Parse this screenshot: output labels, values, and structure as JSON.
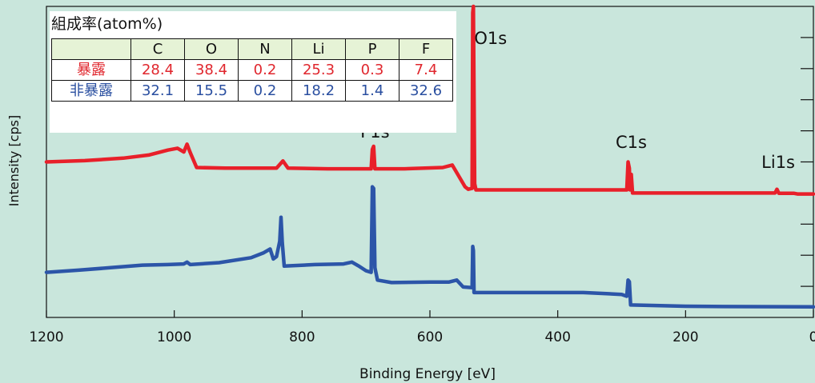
{
  "chart_data": {
    "type": "line",
    "xlabel": "Binding Energy [eV]",
    "ylabel": "Intensity [cps]",
    "xlim": [
      1200,
      0
    ],
    "x_reversed": true,
    "x_ticks": [
      1200,
      1000,
      800,
      600,
      400,
      200,
      0
    ],
    "y_ticks_count": 10,
    "y_ticks_labeled": false,
    "grid": false,
    "series": [
      {
        "name": "暴露",
        "color": "#e8202a",
        "points": [
          [
            1200,
            0.5
          ],
          [
            1140,
            0.504
          ],
          [
            1080,
            0.512
          ],
          [
            1040,
            0.522
          ],
          [
            1010,
            0.538
          ],
          [
            995,
            0.544
          ],
          [
            985,
            0.532
          ],
          [
            980,
            0.557
          ],
          [
            975,
            0.53
          ],
          [
            965,
            0.482
          ],
          [
            920,
            0.48
          ],
          [
            880,
            0.48
          ],
          [
            840,
            0.48
          ],
          [
            830,
            0.503
          ],
          [
            822,
            0.48
          ],
          [
            760,
            0.478
          ],
          [
            700,
            0.478
          ],
          [
            692,
            0.478
          ],
          [
            690,
            0.54
          ],
          [
            688,
            0.55
          ],
          [
            686,
            0.478
          ],
          [
            640,
            0.478
          ],
          [
            580,
            0.482
          ],
          [
            565,
            0.49
          ],
          [
            555,
            0.455
          ],
          [
            545,
            0.42
          ],
          [
            540,
            0.412
          ],
          [
            534,
            0.415
          ],
          [
            533,
            0.98
          ],
          [
            532,
            1.0
          ],
          [
            530,
            0.43
          ],
          [
            528,
            0.41
          ],
          [
            440,
            0.41
          ],
          [
            360,
            0.41
          ],
          [
            300,
            0.41
          ],
          [
            292,
            0.41
          ],
          [
            290,
            0.5
          ],
          [
            288,
            0.48
          ],
          [
            287,
            0.41
          ],
          [
            285,
            0.46
          ],
          [
            283,
            0.4
          ],
          [
            200,
            0.4
          ],
          [
            60,
            0.4
          ],
          [
            57,
            0.412
          ],
          [
            54,
            0.399
          ],
          [
            30,
            0.399
          ],
          [
            25,
            0.397
          ],
          [
            0,
            0.397
          ]
        ]
      },
      {
        "name": "非暴露",
        "color": "#2c55a8",
        "points": [
          [
            1200,
            0.145
          ],
          [
            1150,
            0.152
          ],
          [
            1100,
            0.16
          ],
          [
            1050,
            0.168
          ],
          [
            1010,
            0.17
          ],
          [
            985,
            0.172
          ],
          [
            980,
            0.178
          ],
          [
            975,
            0.17
          ],
          [
            930,
            0.176
          ],
          [
            880,
            0.192
          ],
          [
            860,
            0.208
          ],
          [
            850,
            0.22
          ],
          [
            845,
            0.188
          ],
          [
            840,
            0.196
          ],
          [
            835,
            0.245
          ],
          [
            833,
            0.322
          ],
          [
            831,
            0.24
          ],
          [
            828,
            0.165
          ],
          [
            780,
            0.17
          ],
          [
            735,
            0.172
          ],
          [
            722,
            0.178
          ],
          [
            712,
            0.166
          ],
          [
            700,
            0.15
          ],
          [
            692,
            0.145
          ],
          [
            690,
            0.42
          ],
          [
            688,
            0.415
          ],
          [
            686,
            0.16
          ],
          [
            682,
            0.12
          ],
          [
            660,
            0.112
          ],
          [
            600,
            0.114
          ],
          [
            570,
            0.114
          ],
          [
            558,
            0.12
          ],
          [
            548,
            0.098
          ],
          [
            534,
            0.096
          ],
          [
            533,
            0.228
          ],
          [
            532,
            0.215
          ],
          [
            531,
            0.08
          ],
          [
            440,
            0.08
          ],
          [
            360,
            0.08
          ],
          [
            300,
            0.074
          ],
          [
            292,
            0.068
          ],
          [
            290,
            0.12
          ],
          [
            288,
            0.115
          ],
          [
            286,
            0.04
          ],
          [
            200,
            0.036
          ],
          [
            140,
            0.035
          ],
          [
            0,
            0.034
          ]
        ]
      }
    ],
    "annotations": [
      {
        "text": "O1s",
        "x": 505
      },
      {
        "text": "F1s",
        "x": 686
      },
      {
        "text": "C1s",
        "x": 285
      },
      {
        "text": "Li1s",
        "x": 55
      }
    ],
    "table": {
      "title": "組成率(atom%)",
      "columns": [
        "C",
        "O",
        "N",
        "Li",
        "P",
        "F"
      ],
      "rows": [
        {
          "label": "暴露",
          "values": [
            "28.4",
            "38.4",
            "0.2",
            "25.3",
            "0.3",
            "7.4"
          ]
        },
        {
          "label": "非暴露",
          "values": [
            "32.1",
            "15.5",
            "0.2",
            "18.2",
            "1.4",
            "32.6"
          ]
        }
      ]
    }
  }
}
